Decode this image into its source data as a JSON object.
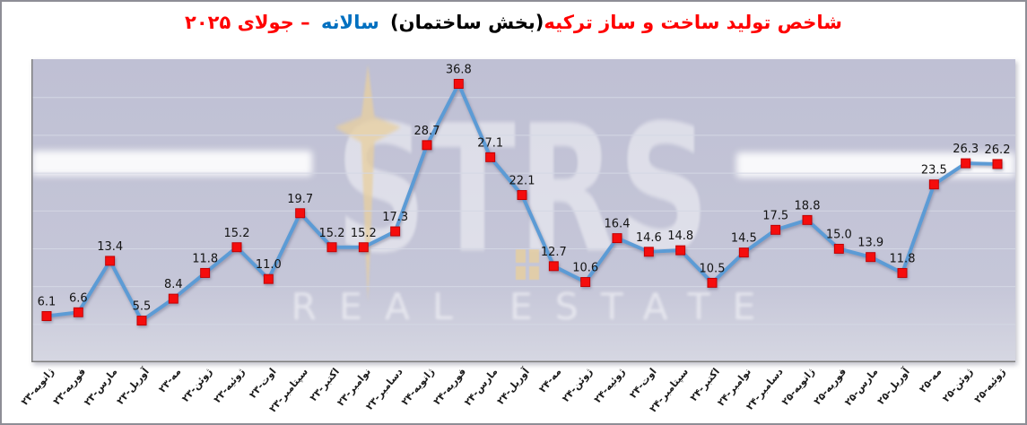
{
  "title": {
    "segment_red_main": "شاخص تولید ساخت و ساز ترکیه",
    "segment_black_paren": "(بخش ساختمان)",
    "segment_blue": "سالانه",
    "segment_red_date": "– جولای ۲۰۲۵"
  },
  "watermark": {
    "brand_left": "ST",
    "star_icon": "four-point-star",
    "brand_right": "RS",
    "subtitle": "REAL ESTATE"
  },
  "colors": {
    "title_red": "#ff0000",
    "title_black": "#000000",
    "title_blue": "#0070c0",
    "line": "#5B9BD5",
    "marker_fill": "#f51111",
    "marker_stroke": "#c00000",
    "gridline": "#d4d7e4",
    "axis": "#7f7f7f",
    "data_label": "#141414",
    "plot_background": "#c4c5d7",
    "watermark_gold": "#e8cf9e"
  },
  "chart_data": {
    "type": "line",
    "title": "شاخص تولید ساخت و ساز ترکیه(بخش ساختمان) سالانه – جولای ۲۰۲۵",
    "categories": [
      "ژانویه-۲۳",
      "فوریه-۲۳",
      "مارس-۲۳",
      "آوریل-۲۳",
      "مه-۲۳",
      "ژوئن-۲۳",
      "ژوئیه-۲۳",
      "اوت-۲۳",
      "سپتامبر-۲۳",
      "اکتبر-۲۳",
      "نوامبر-۲۳",
      "دسامبر-۲۳",
      "ژانویه-۲۴",
      "فوریه-۲۴",
      "مارس-۲۴",
      "آوریل-۲۴",
      "مه-۲۴",
      "ژوئن-۲۴",
      "ژوئیه-۲۴",
      "اوت-۲۴",
      "سپتامبر-۲۴",
      "اکتبر-۲۴",
      "نوامبر-۲۴",
      "دسامبر-۲۴",
      "ژانویه-۲۵",
      "فوریه-۲۵",
      "مارس-۲۵",
      "آوریل-۲۵",
      "مه-۲۵",
      "ژوئن-۲۵",
      "ژوئیه-۲۵"
    ],
    "values": [
      6.1,
      6.6,
      13.4,
      5.5,
      8.4,
      11.8,
      15.2,
      11.0,
      19.7,
      15.2,
      15.2,
      17.3,
      28.7,
      36.8,
      27.1,
      22.1,
      12.7,
      10.6,
      16.4,
      14.6,
      14.8,
      10.5,
      14.5,
      17.5,
      18.8,
      15.0,
      13.9,
      11.8,
      23.5,
      26.3,
      26.2
    ],
    "ylim": [
      0,
      40
    ],
    "y_gridline_step": 5,
    "grid": "horizontal",
    "data_labels": true,
    "legend_position": "none",
    "x_tick_rotation_deg": -50,
    "xlabel": "",
    "ylabel": ""
  }
}
